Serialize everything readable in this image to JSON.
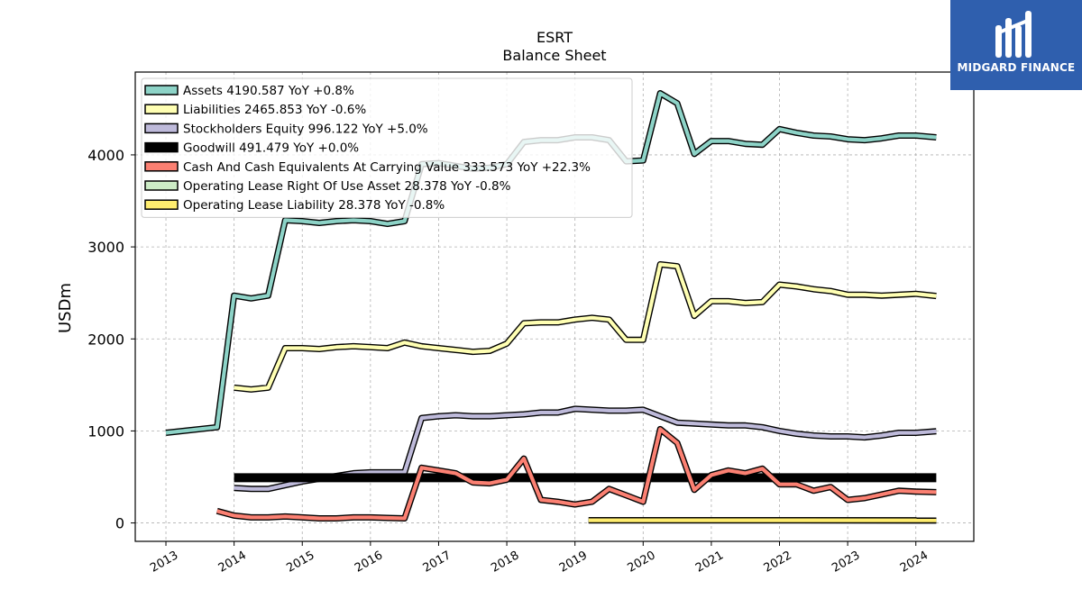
{
  "brand": {
    "name": "MIDGARD FINANCE",
    "bg_color": "#2f5fae"
  },
  "chart_data": {
    "type": "line",
    "title": "ESRT",
    "subtitle": "Balance  Sheet",
    "xlabel": "",
    "ylabel": "USDm",
    "xlim": [
      2012.55,
      2024.85
    ],
    "ylim": [
      -200,
      4900
    ],
    "x_ticks": [
      2013,
      2014,
      2015,
      2016,
      2017,
      2018,
      2019,
      2020,
      2021,
      2022,
      2023,
      2024
    ],
    "x_tick_labels": [
      "2013",
      "2014",
      "2015",
      "2016",
      "2017",
      "2018",
      "2019",
      "2020",
      "2021",
      "2022",
      "2023",
      "2024"
    ],
    "y_ticks": [
      0,
      1000,
      2000,
      3000,
      4000
    ],
    "y_tick_labels": [
      "0",
      "1000",
      "2000",
      "3000",
      "4000"
    ],
    "grid": true,
    "legend_position": "upper-left",
    "series": [
      {
        "name": "Assets",
        "legend": "Assets  4190.587 YoY +0.8%",
        "color": "#8dd3c7",
        "points": [
          [
            2013.0,
            980
          ],
          [
            2013.75,
            1040
          ],
          [
            2014.0,
            2470
          ],
          [
            2014.25,
            2440
          ],
          [
            2014.5,
            2470
          ],
          [
            2014.75,
            3290
          ],
          [
            2015.0,
            3280
          ],
          [
            2015.25,
            3260
          ],
          [
            2015.5,
            3280
          ],
          [
            2015.75,
            3290
          ],
          [
            2016.0,
            3280
          ],
          [
            2016.25,
            3250
          ],
          [
            2016.5,
            3280
          ],
          [
            2016.75,
            3900
          ],
          [
            2017.0,
            3910
          ],
          [
            2017.25,
            3880
          ],
          [
            2017.5,
            3850
          ],
          [
            2017.75,
            3860
          ],
          [
            2018.0,
            3900
          ],
          [
            2018.25,
            4140
          ],
          [
            2018.5,
            4160
          ],
          [
            2018.75,
            4160
          ],
          [
            2019.0,
            4190
          ],
          [
            2019.25,
            4190
          ],
          [
            2019.5,
            4160
          ],
          [
            2019.75,
            3930
          ],
          [
            2020.0,
            3940
          ],
          [
            2020.25,
            4670
          ],
          [
            2020.5,
            4560
          ],
          [
            2020.75,
            4010
          ],
          [
            2021.0,
            4150
          ],
          [
            2021.25,
            4150
          ],
          [
            2021.5,
            4120
          ],
          [
            2021.75,
            4110
          ],
          [
            2022.0,
            4280
          ],
          [
            2022.25,
            4240
          ],
          [
            2022.5,
            4210
          ],
          [
            2022.75,
            4200
          ],
          [
            2023.0,
            4170
          ],
          [
            2023.25,
            4160
          ],
          [
            2023.5,
            4180
          ],
          [
            2023.75,
            4210
          ],
          [
            2024.0,
            4210
          ],
          [
            2024.3,
            4190
          ]
        ]
      },
      {
        "name": "Liabilities",
        "legend": "Liabilities  2465.853 YoY -0.6%",
        "color": "#ffffb3",
        "points": [
          [
            2014.0,
            1470
          ],
          [
            2014.25,
            1450
          ],
          [
            2014.5,
            1470
          ],
          [
            2014.75,
            1900
          ],
          [
            2015.0,
            1900
          ],
          [
            2015.25,
            1890
          ],
          [
            2015.5,
            1910
          ],
          [
            2015.75,
            1920
          ],
          [
            2016.0,
            1910
          ],
          [
            2016.25,
            1900
          ],
          [
            2016.5,
            1960
          ],
          [
            2016.75,
            1920
          ],
          [
            2017.0,
            1900
          ],
          [
            2017.25,
            1880
          ],
          [
            2017.5,
            1860
          ],
          [
            2017.75,
            1870
          ],
          [
            2018.0,
            1950
          ],
          [
            2018.25,
            2170
          ],
          [
            2018.5,
            2180
          ],
          [
            2018.75,
            2180
          ],
          [
            2019.0,
            2210
          ],
          [
            2019.25,
            2230
          ],
          [
            2019.5,
            2210
          ],
          [
            2019.75,
            1990
          ],
          [
            2020.0,
            1990
          ],
          [
            2020.25,
            2810
          ],
          [
            2020.5,
            2790
          ],
          [
            2020.75,
            2250
          ],
          [
            2021.0,
            2410
          ],
          [
            2021.25,
            2410
          ],
          [
            2021.5,
            2390
          ],
          [
            2021.75,
            2400
          ],
          [
            2022.0,
            2590
          ],
          [
            2022.25,
            2570
          ],
          [
            2022.5,
            2540
          ],
          [
            2022.75,
            2520
          ],
          [
            2023.0,
            2480
          ],
          [
            2023.25,
            2480
          ],
          [
            2023.5,
            2470
          ],
          [
            2023.75,
            2480
          ],
          [
            2024.0,
            2490
          ],
          [
            2024.3,
            2466
          ]
        ]
      },
      {
        "name": "Stockholders Equity",
        "legend": "Stockholders Equity  996.122 YoY +5.0%",
        "color": "#bebada",
        "points": [
          [
            2014.0,
            380
          ],
          [
            2014.25,
            370
          ],
          [
            2014.5,
            370
          ],
          [
            2014.75,
            410
          ],
          [
            2015.0,
            450
          ],
          [
            2015.25,
            480
          ],
          [
            2015.5,
            510
          ],
          [
            2015.75,
            540
          ],
          [
            2016.0,
            550
          ],
          [
            2016.25,
            550
          ],
          [
            2016.5,
            550
          ],
          [
            2016.75,
            1140
          ],
          [
            2017.0,
            1160
          ],
          [
            2017.25,
            1170
          ],
          [
            2017.5,
            1160
          ],
          [
            2017.75,
            1160
          ],
          [
            2018.0,
            1170
          ],
          [
            2018.25,
            1180
          ],
          [
            2018.5,
            1200
          ],
          [
            2018.75,
            1200
          ],
          [
            2019.0,
            1240
          ],
          [
            2019.25,
            1230
          ],
          [
            2019.5,
            1220
          ],
          [
            2019.75,
            1220
          ],
          [
            2020.0,
            1230
          ],
          [
            2020.25,
            1160
          ],
          [
            2020.5,
            1090
          ],
          [
            2020.75,
            1080
          ],
          [
            2021.0,
            1070
          ],
          [
            2021.25,
            1060
          ],
          [
            2021.5,
            1060
          ],
          [
            2021.75,
            1040
          ],
          [
            2022.0,
            1000
          ],
          [
            2022.25,
            970
          ],
          [
            2022.5,
            950
          ],
          [
            2022.75,
            940
          ],
          [
            2023.0,
            940
          ],
          [
            2023.25,
            930
          ],
          [
            2023.5,
            950
          ],
          [
            2023.75,
            980
          ],
          [
            2024.0,
            980
          ],
          [
            2024.3,
            996
          ]
        ]
      },
      {
        "name": "Goodwill",
        "legend": "Goodwill  491.479 YoY +0.0%",
        "color": "#000000",
        "points": [
          [
            2014.0,
            491
          ],
          [
            2024.3,
            491
          ]
        ]
      },
      {
        "name": "Cash And Cash Equivalents At Carrying Value",
        "legend": "Cash And Cash Equivalents At Carrying Value  333.573 YoY +22.3%",
        "color": "#fb8072",
        "points": [
          [
            2013.75,
            130
          ],
          [
            2014.0,
            80
          ],
          [
            2014.25,
            60
          ],
          [
            2014.5,
            60
          ],
          [
            2014.75,
            70
          ],
          [
            2015.0,
            60
          ],
          [
            2015.25,
            50
          ],
          [
            2015.5,
            50
          ],
          [
            2015.75,
            60
          ],
          [
            2016.0,
            60
          ],
          [
            2016.25,
            55
          ],
          [
            2016.5,
            50
          ],
          [
            2016.75,
            600
          ],
          [
            2017.0,
            570
          ],
          [
            2017.25,
            540
          ],
          [
            2017.5,
            440
          ],
          [
            2017.75,
            430
          ],
          [
            2018.0,
            470
          ],
          [
            2018.25,
            700
          ],
          [
            2018.5,
            250
          ],
          [
            2018.75,
            230
          ],
          [
            2019.0,
            200
          ],
          [
            2019.25,
            230
          ],
          [
            2019.5,
            370
          ],
          [
            2019.75,
            300
          ],
          [
            2020.0,
            230
          ],
          [
            2020.25,
            1020
          ],
          [
            2020.5,
            870
          ],
          [
            2020.75,
            360
          ],
          [
            2021.0,
            520
          ],
          [
            2021.25,
            570
          ],
          [
            2021.5,
            540
          ],
          [
            2021.75,
            590
          ],
          [
            2022.0,
            420
          ],
          [
            2022.25,
            420
          ],
          [
            2022.5,
            350
          ],
          [
            2022.75,
            390
          ],
          [
            2023.0,
            250
          ],
          [
            2023.25,
            270
          ],
          [
            2023.5,
            310
          ],
          [
            2023.75,
            350
          ],
          [
            2024.0,
            340
          ],
          [
            2024.3,
            334
          ]
        ]
      },
      {
        "name": "Operating Lease Right Of Use Asset",
        "legend": "Operating Lease Right Of Use Asset  28.378 YoY -0.8%",
        "color": "#ccebc5",
        "points": [
          [
            2019.2,
            29
          ],
          [
            2024.3,
            28.4
          ]
        ]
      },
      {
        "name": "Operating Lease Liability",
        "legend": "Operating Lease Liability  28.378 YoY -0.8%",
        "color": "#ffed6f",
        "points": [
          [
            2019.2,
            29
          ],
          [
            2024.3,
            28.4
          ]
        ]
      }
    ]
  }
}
